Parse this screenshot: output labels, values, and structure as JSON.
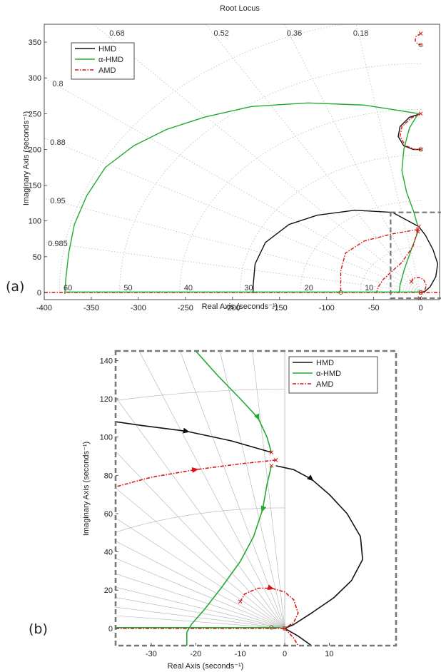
{
  "panel_labels": {
    "a": "(a)",
    "b": "(b)"
  },
  "colors": {
    "hmd": "#111111",
    "alpha_hmd": "#22aa33",
    "amd": "#dd1111",
    "box": "#777777",
    "grid": "#aaaaaa",
    "grid_b": "#b0b0b0"
  },
  "chart_data": [
    {
      "type": "line",
      "title": "Root Locus",
      "xlabel": "Real Axis (seconds⁻¹)",
      "ylabel": "Imaginary Axis (seconds⁻¹)",
      "xlim": [
        -400,
        20
      ],
      "ylim": [
        -10,
        375
      ],
      "xticks": [
        "-400",
        "-350",
        "-300",
        "-250",
        "-200",
        "-150",
        "-100",
        "-50",
        "0"
      ],
      "xtick_values": [
        -400,
        -350,
        -300,
        -250,
        -200,
        -150,
        -100,
        -50,
        0
      ],
      "yticks": [
        "0",
        "50",
        "100",
        "150",
        "200",
        "250",
        "300",
        "350"
      ],
      "ytick_values": [
        0,
        50,
        100,
        150,
        200,
        250,
        300,
        350
      ],
      "grid": "s-plane damping/frequency grid",
      "damping_labels": [
        {
          "text": "0.68",
          "zeta": 0.68,
          "pos": "top"
        },
        {
          "text": "0.52",
          "zeta": 0.52,
          "pos": "top"
        },
        {
          "text": "0.36",
          "zeta": 0.36,
          "pos": "top"
        },
        {
          "text": "0.18",
          "zeta": 0.18,
          "pos": "top"
        },
        {
          "text": "0.8",
          "zeta": 0.8,
          "pos": "left"
        },
        {
          "text": "0.88",
          "zeta": 0.88,
          "pos": "left"
        },
        {
          "text": "0.95",
          "zeta": 0.95,
          "pos": "left"
        },
        {
          "text": "0.985",
          "zeta": 0.985,
          "pos": "left"
        }
      ],
      "frequency_labels": [
        "60",
        "50",
        "40",
        "30",
        "20",
        "10"
      ],
      "frequency_values": [
        60,
        50,
        40,
        30,
        20,
        10
      ],
      "legend": {
        "placement": "top-left",
        "entries": [
          "HMD",
          "α-HMD",
          "AMD"
        ]
      },
      "zoom_box": {
        "x": [
          -32,
          25
        ],
        "y": [
          -8,
          112
        ]
      },
      "series": [
        {
          "name": "HMD",
          "color": "#111111",
          "dash": "",
          "points": [
            [
              -2,
              92
            ],
            [
              -30,
              112
            ],
            [
              -70,
              115
            ],
            [
              -110,
              108
            ],
            [
              -140,
              95
            ],
            [
              -165,
              70
            ],
            [
              -176,
              40
            ],
            [
              -178,
              10
            ],
            [
              -178,
              0
            ],
            [
              -178,
              -1
            ]
          ]
        },
        {
          "name": "HMD",
          "color": "#111111",
          "dash": "",
          "points": [
            [
              -2,
              92
            ],
            [
              5,
              80
            ],
            [
              13,
              60
            ],
            [
              18,
              40
            ],
            [
              16,
              22
            ],
            [
              10,
              8
            ],
            [
              4,
              1
            ],
            [
              0,
              0
            ]
          ]
        },
        {
          "name": "HMD",
          "color": "#111111",
          "dash": "",
          "points": [
            [
              0,
              250
            ],
            [
              -12,
              245
            ],
            [
              -22,
              232
            ],
            [
              -24,
              218
            ],
            [
              -18,
              205
            ],
            [
              -8,
              200
            ],
            [
              0,
              200
            ]
          ]
        },
        {
          "name": "α-HMD",
          "color": "#22aa33",
          "dash": "",
          "points": [
            [
              -3,
              85
            ],
            [
              -10,
              60
            ],
            [
              -18,
              30
            ],
            [
              -22,
              10
            ],
            [
              -23,
              0
            ]
          ]
        },
        {
          "name": "α-HMD",
          "color": "#22aa33",
          "dash": "",
          "points": [
            [
              -3,
              92
            ],
            [
              -8,
              115
            ],
            [
              -15,
              140
            ],
            [
              -20,
              170
            ],
            [
              -18,
              200
            ],
            [
              -12,
              230
            ],
            [
              -5,
              245
            ],
            [
              -2,
              250
            ]
          ]
        },
        {
          "name": "α-HMD",
          "color": "#22aa33",
          "dash": "",
          "points": [
            [
              -2,
              250
            ],
            [
              -60,
              262
            ],
            [
              -120,
              265
            ],
            [
              -180,
              260
            ],
            [
              -230,
              245
            ],
            [
              -270,
              228
            ],
            [
              -305,
              205
            ],
            [
              -335,
              175
            ],
            [
              -355,
              135
            ],
            [
              -368,
              95
            ],
            [
              -374,
              55
            ],
            [
              -377,
              20
            ],
            [
              -378,
              0
            ],
            [
              -378,
              -2
            ]
          ]
        },
        {
          "name": "AMD",
          "color": "#dd1111",
          "dash": "5,2,1.5,2",
          "points": [
            [
              -3,
              88
            ],
            [
              -30,
              82
            ],
            [
              -60,
              72
            ],
            [
              -80,
              55
            ],
            [
              -85,
              30
            ],
            [
              -85,
              10
            ],
            [
              -85,
              0
            ]
          ]
        },
        {
          "name": "AMD",
          "color": "#dd1111",
          "dash": "5,2,1.5,2",
          "points": [
            [
              -3,
              88
            ],
            [
              -8,
              65
            ],
            [
              -20,
              42
            ],
            [
              -32,
              28
            ],
            [
              -40,
              18
            ],
            [
              -45,
              8
            ],
            [
              -47,
              0
            ]
          ]
        },
        {
          "name": "AMD",
          "color": "#dd1111",
          "dash": "5,2,1.5,2",
          "points": [
            [
              0,
              250
            ],
            [
              -10,
              244
            ],
            [
              -20,
              232
            ],
            [
              -22,
              218
            ],
            [
              -16,
              205
            ],
            [
              -6,
              200
            ],
            [
              0,
              200
            ]
          ]
        },
        {
          "name": "AMD",
          "color": "#dd1111",
          "dash": "5,2,1.5,2",
          "points": [
            [
              -10,
              15
            ],
            [
              -8,
              20
            ],
            [
              -2,
              21
            ],
            [
              3,
              18
            ],
            [
              6,
              10
            ],
            [
              4,
              2
            ],
            [
              0,
              0
            ]
          ]
        },
        {
          "name": "AMD",
          "color": "#dd1111",
          "dash": "5,2,1.5,2",
          "points": [
            [
              0,
              362
            ],
            [
              -5,
              358
            ],
            [
              -6,
              352
            ],
            [
              -3,
              347
            ],
            [
              1,
              346
            ]
          ]
        },
        {
          "name": "real-axis",
          "color": "#dd1111",
          "dash": "5,2,1.5,2",
          "points": [
            [
              -400,
              0
            ],
            [
              20,
              0
            ]
          ]
        },
        {
          "name": "real-axis",
          "color": "#22aa33",
          "dash": "",
          "points": [
            [
              -378,
              0.7
            ],
            [
              -2,
              0.7
            ]
          ]
        }
      ],
      "poles": [
        [
          -2,
          92
        ],
        [
          -3,
          88
        ],
        [
          0,
          250
        ],
        [
          0,
          200
        ],
        [
          -10,
          15
        ],
        [
          0,
          362
        ],
        [
          0,
          0
        ],
        [
          -1,
          -8
        ],
        [
          -3,
          85
        ]
      ],
      "zeros": [
        [
          0,
          200
        ],
        [
          -85,
          0
        ],
        [
          0,
          0
        ],
        [
          0,
          346
        ]
      ]
    },
    {
      "type": "line",
      "title": "",
      "xlabel": "Real Axis (seconds⁻¹)",
      "ylabel": "Imaginary Axis (seconds⁻¹)",
      "xlim": [
        -38,
        25
      ],
      "ylim": [
        -9,
        145
      ],
      "xticks": [
        "-30",
        "-20",
        "-10",
        "0",
        "10"
      ],
      "xtick_values": [
        -30,
        -20,
        -10,
        0,
        10
      ],
      "yticks": [
        "0",
        "20",
        "40",
        "60",
        "80",
        "100",
        "120",
        "140"
      ],
      "ytick_values": [
        0,
        20,
        40,
        60,
        80,
        100,
        120,
        140
      ],
      "grid": "s-plane damping/frequency grid",
      "legend": {
        "placement": "top-right",
        "entries": [
          "HMD",
          "α-HMD",
          "AMD"
        ]
      },
      "series": [
        {
          "name": "HMD",
          "color": "#111111",
          "dash": "",
          "arrow_at": 2,
          "arrow_dir": -1,
          "points": [
            [
              -3,
              92
            ],
            [
              -12,
              98
            ],
            [
              -22,
              103
            ],
            [
              -32,
              106
            ],
            [
              -38,
              108
            ]
          ]
        },
        {
          "name": "HMD",
          "color": "#111111",
          "dash": "",
          "arrow_at": 2,
          "arrow_dir": 1,
          "points": [
            [
              -2,
              85
            ],
            [
              2,
              83
            ],
            [
              6,
              78
            ],
            [
              10,
              70
            ],
            [
              14,
              60
            ],
            [
              17,
              48
            ],
            [
              17.5,
              36
            ],
            [
              15,
              25
            ],
            [
              11,
              16
            ],
            [
              6,
              8
            ],
            [
              2,
              2
            ],
            [
              0,
              0
            ]
          ]
        },
        {
          "name": "HMD",
          "color": "#111111",
          "dash": "",
          "points": [
            [
              0,
              0
            ],
            [
              3,
              -4
            ],
            [
              6,
              -9
            ]
          ]
        },
        {
          "name": "α-HMD",
          "color": "#22aa33",
          "dash": "",
          "arrow_at": 2,
          "arrow_dir": -1,
          "points": [
            [
              -3,
              92
            ],
            [
              -4,
              100
            ],
            [
              -6,
              110
            ],
            [
              -10,
              120
            ],
            [
              -15,
              132
            ],
            [
              -20,
              145
            ]
          ]
        },
        {
          "name": "α-HMD",
          "color": "#22aa33",
          "dash": "",
          "arrow_at": 2,
          "arrow_dir": 1,
          "points": [
            [
              -3,
              85
            ],
            [
              -4,
              75
            ],
            [
              -5,
              62
            ],
            [
              -7,
              48
            ],
            [
              -10,
              35
            ],
            [
              -14,
              22
            ],
            [
              -18,
              10
            ],
            [
              -21,
              2
            ],
            [
              -22,
              -2
            ],
            [
              -22,
              -9
            ]
          ]
        },
        {
          "name": "AMD",
          "color": "#dd1111",
          "dash": "5,2,1.5,2",
          "arrow_at": 2,
          "arrow_dir": -1,
          "points": [
            [
              -2,
              88
            ],
            [
              -10,
              86
            ],
            [
              -20,
              83
            ],
            [
              -30,
              79
            ],
            [
              -38,
              74
            ]
          ]
        },
        {
          "name": "AMD",
          "color": "#dd1111",
          "dash": "5,2,1.5,2",
          "arrow_at": 3,
          "arrow_dir": 1,
          "points": [
            [
              -10,
              14
            ],
            [
              -9,
              18
            ],
            [
              -6,
              21
            ],
            [
              -3,
              21
            ],
            [
              0,
              19
            ],
            [
              2,
              15
            ],
            [
              3,
              8
            ],
            [
              2,
              3
            ],
            [
              0,
              0
            ]
          ]
        },
        {
          "name": "AMD",
          "color": "#dd1111",
          "dash": "5,2,1.5,2",
          "points": [
            [
              0,
              0
            ],
            [
              2,
              -5
            ],
            [
              3,
              -9
            ]
          ]
        },
        {
          "name": "real-axis",
          "color": "#dd1111",
          "dash": "5,2,1.5,2",
          "points": [
            [
              -38,
              0
            ],
            [
              0,
              0
            ]
          ]
        },
        {
          "name": "real-axis",
          "color": "#22aa33",
          "dash": "",
          "points": [
            [
              -38,
              0.4
            ],
            [
              -1,
              0.4
            ]
          ]
        }
      ],
      "poles": [
        [
          -3,
          92
        ],
        [
          -2,
          88
        ],
        [
          -3,
          85
        ],
        [
          -10,
          14
        ],
        [
          0,
          0
        ]
      ],
      "zeros": [
        [
          -3,
          0.5
        ],
        [
          0,
          0
        ]
      ]
    }
  ]
}
